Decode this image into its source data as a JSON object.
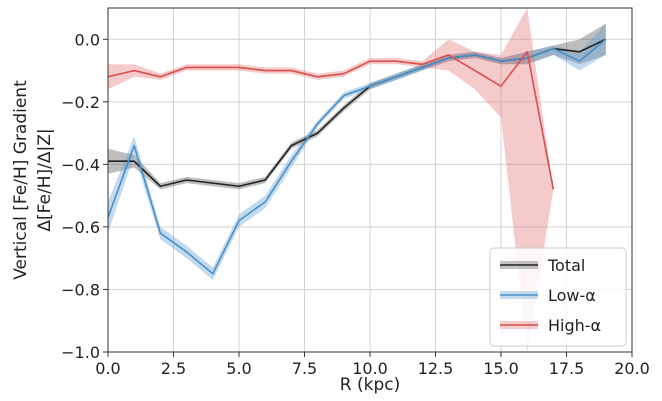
{
  "chart_data": {
    "type": "line",
    "xlabel": "R (kpc)",
    "ylabel_lines": [
      "Vertical [Fe/H] Gradient",
      "Δ[Fe/H]/Δ|Z|"
    ],
    "xlim": [
      0.0,
      20.0
    ],
    "ylim": [
      -1.0,
      0.1
    ],
    "xticks": [
      0.0,
      2.5,
      5.0,
      7.5,
      10.0,
      12.5,
      15.0,
      17.5,
      20.0
    ],
    "xtick_labels": [
      "0.0",
      "2.5",
      "5.0",
      "7.5",
      "10.0",
      "12.5",
      "15.0",
      "17.5",
      "20.0"
    ],
    "yticks": [
      0.0,
      -0.2,
      -0.4,
      -0.6,
      -0.8,
      -1.0
    ],
    "ytick_labels": [
      "0.0",
      "−0.2",
      "−0.4",
      "−0.6",
      "−0.8",
      "−1.0"
    ],
    "grid": true,
    "legend_position": "lower-right",
    "series": [
      {
        "name": "Total",
        "color": "#222222",
        "band_color": "#555555",
        "x": [
          0,
          1,
          2,
          3,
          4,
          5,
          6,
          7,
          8,
          9,
          10,
          11,
          12,
          13,
          14,
          15,
          16,
          17,
          18,
          19
        ],
        "y": [
          -0.39,
          -0.39,
          -0.47,
          -0.45,
          -0.46,
          -0.47,
          -0.45,
          -0.34,
          -0.3,
          -0.22,
          -0.15,
          -0.12,
          -0.09,
          -0.06,
          -0.05,
          -0.07,
          -0.06,
          -0.03,
          -0.04,
          0.0
        ],
        "lower": [
          -0.43,
          -0.41,
          -0.48,
          -0.46,
          -0.47,
          -0.48,
          -0.46,
          -0.35,
          -0.31,
          -0.23,
          -0.16,
          -0.13,
          -0.1,
          -0.07,
          -0.06,
          -0.08,
          -0.08,
          -0.05,
          -0.08,
          -0.05
        ],
        "upper": [
          -0.35,
          -0.37,
          -0.46,
          -0.44,
          -0.45,
          -0.46,
          -0.44,
          -0.33,
          -0.29,
          -0.21,
          -0.14,
          -0.11,
          -0.08,
          -0.05,
          -0.04,
          -0.06,
          -0.04,
          -0.02,
          0.0,
          0.05
        ]
      },
      {
        "name": "Low-α",
        "color": "#4a90c8",
        "band_color": "#5b9fd4",
        "x": [
          0,
          1,
          2,
          3,
          4,
          5,
          6,
          7,
          8,
          9,
          10,
          11,
          12,
          13,
          14,
          15,
          16,
          17,
          18,
          19
        ],
        "y": [
          -0.57,
          -0.34,
          -0.62,
          -0.68,
          -0.75,
          -0.58,
          -0.52,
          -0.39,
          -0.27,
          -0.18,
          -0.15,
          -0.12,
          -0.09,
          -0.06,
          -0.05,
          -0.07,
          -0.06,
          -0.03,
          -0.07,
          0.0
        ],
        "lower": [
          -0.62,
          -0.37,
          -0.64,
          -0.7,
          -0.77,
          -0.6,
          -0.54,
          -0.41,
          -0.28,
          -0.19,
          -0.16,
          -0.13,
          -0.1,
          -0.07,
          -0.06,
          -0.08,
          -0.08,
          -0.05,
          -0.1,
          -0.05
        ],
        "upper": [
          -0.52,
          -0.31,
          -0.6,
          -0.66,
          -0.73,
          -0.56,
          -0.5,
          -0.37,
          -0.26,
          -0.17,
          -0.14,
          -0.11,
          -0.08,
          -0.05,
          -0.04,
          -0.06,
          -0.04,
          -0.02,
          -0.04,
          0.05
        ]
      },
      {
        "name": "High-α",
        "color": "#d94f4f",
        "band_color": "#e57373",
        "x": [
          0,
          1,
          2,
          3,
          4,
          5,
          6,
          7,
          8,
          9,
          10,
          11,
          12,
          13,
          14,
          15,
          16,
          17
        ],
        "y": [
          -0.12,
          -0.1,
          -0.12,
          -0.09,
          -0.09,
          -0.09,
          -0.1,
          -0.1,
          -0.12,
          -0.11,
          -0.07,
          -0.07,
          -0.08,
          -0.05,
          -0.1,
          -0.15,
          -0.04,
          -0.48
        ],
        "lower": [
          -0.16,
          -0.12,
          -0.13,
          -0.1,
          -0.1,
          -0.1,
          -0.11,
          -0.11,
          -0.13,
          -0.12,
          -0.08,
          -0.08,
          -0.09,
          -0.1,
          -0.16,
          -0.25,
          -1.0,
          -0.48
        ],
        "upper": [
          -0.08,
          -0.08,
          -0.11,
          -0.08,
          -0.08,
          -0.08,
          -0.09,
          -0.09,
          -0.11,
          -0.1,
          -0.06,
          -0.06,
          -0.07,
          0.0,
          -0.04,
          -0.05,
          0.1,
          -0.48
        ]
      }
    ]
  }
}
